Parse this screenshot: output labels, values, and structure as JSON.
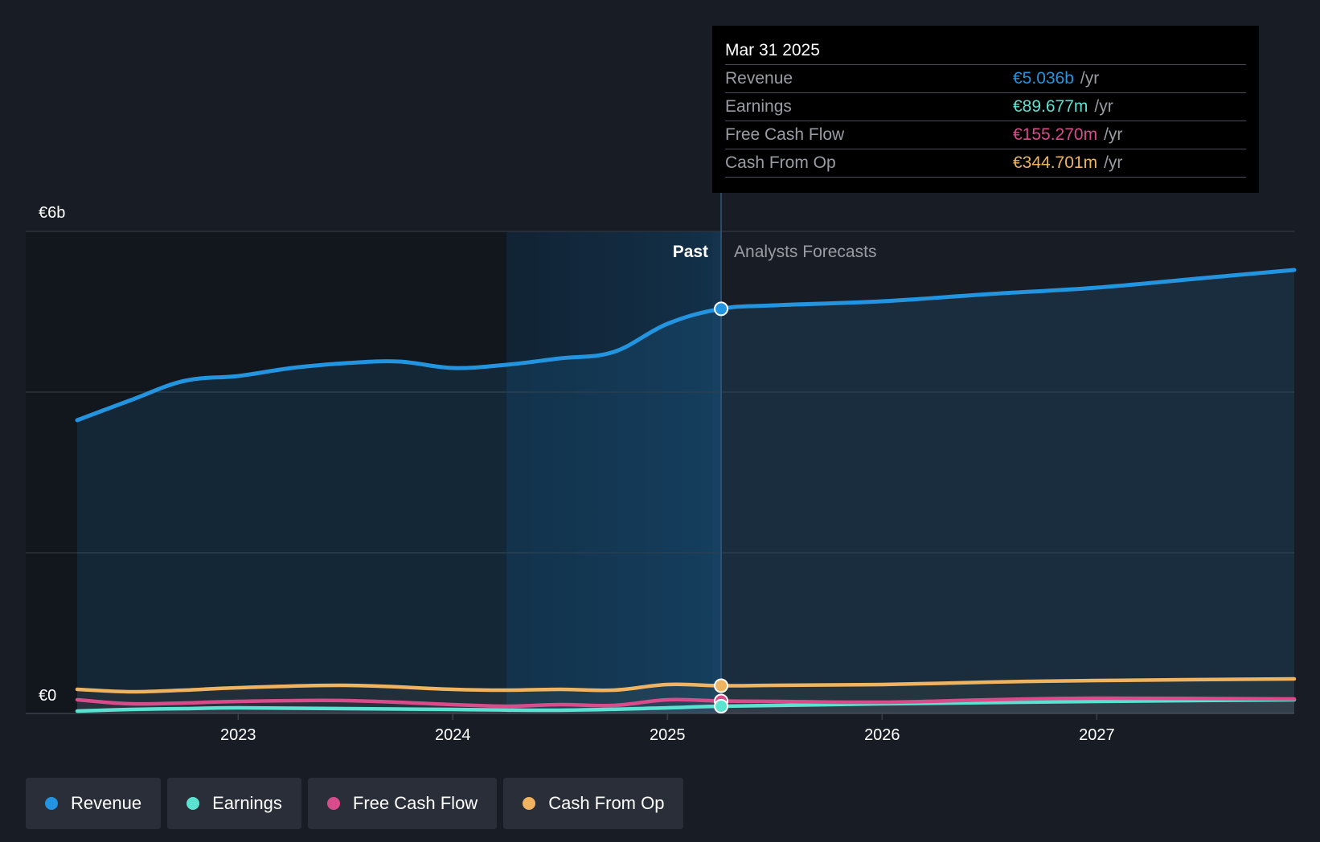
{
  "chart_data": {
    "type": "area",
    "currency": "€",
    "y_axis": {
      "min": 0,
      "max": 6,
      "unit": "b",
      "labels": [
        "€6b",
        "€0"
      ],
      "gridlines": [
        0,
        2,
        4,
        6
      ]
    },
    "x_axis": {
      "min": 2022.25,
      "max": 2027.92,
      "ticks": [
        {
          "value": 2023,
          "label": "2023"
        },
        {
          "value": 2024,
          "label": "2024"
        },
        {
          "value": 2025,
          "label": "2025"
        },
        {
          "value": 2026,
          "label": "2026"
        },
        {
          "value": 2027,
          "label": "2027"
        }
      ]
    },
    "past_label": "Past",
    "forecast_label": "Analysts Forecasts",
    "divider_x": 2025.25,
    "highlight_start_x": 2024.25,
    "series": [
      {
        "name": "Revenue",
        "color": "#2394df",
        "fill": true,
        "points": [
          [
            2022.25,
            3.65
          ],
          [
            2022.5,
            3.9
          ],
          [
            2022.75,
            4.14
          ],
          [
            2023.0,
            4.2
          ],
          [
            2023.25,
            4.3
          ],
          [
            2023.5,
            4.36
          ],
          [
            2023.75,
            4.38
          ],
          [
            2024.0,
            4.3
          ],
          [
            2024.25,
            4.34
          ],
          [
            2024.5,
            4.42
          ],
          [
            2024.75,
            4.5
          ],
          [
            2025.0,
            4.85
          ],
          [
            2025.25,
            5.036
          ],
          [
            2025.5,
            5.08
          ],
          [
            2026.0,
            5.13
          ],
          [
            2026.5,
            5.22
          ],
          [
            2027.0,
            5.3
          ],
          [
            2027.5,
            5.42
          ],
          [
            2027.92,
            5.52
          ]
        ]
      },
      {
        "name": "Earnings",
        "color": "#5ce2d1",
        "fill": false,
        "points": [
          [
            2022.25,
            0.03
          ],
          [
            2022.5,
            0.05
          ],
          [
            2022.75,
            0.06
          ],
          [
            2023.0,
            0.07
          ],
          [
            2023.5,
            0.06
          ],
          [
            2024.0,
            0.05
          ],
          [
            2024.5,
            0.04
          ],
          [
            2025.0,
            0.07
          ],
          [
            2025.25,
            0.09
          ],
          [
            2026.0,
            0.12
          ],
          [
            2027.0,
            0.15
          ],
          [
            2027.92,
            0.17
          ]
        ]
      },
      {
        "name": "Free Cash Flow",
        "color": "#d94c8b",
        "fill": false,
        "points": [
          [
            2022.25,
            0.17
          ],
          [
            2022.5,
            0.12
          ],
          [
            2022.75,
            0.13
          ],
          [
            2023.0,
            0.15
          ],
          [
            2023.5,
            0.16
          ],
          [
            2024.0,
            0.11
          ],
          [
            2024.25,
            0.09
          ],
          [
            2024.5,
            0.11
          ],
          [
            2024.75,
            0.1
          ],
          [
            2025.0,
            0.17
          ],
          [
            2025.25,
            0.155
          ],
          [
            2025.5,
            0.15
          ],
          [
            2026.0,
            0.14
          ],
          [
            2026.5,
            0.17
          ],
          [
            2027.0,
            0.19
          ],
          [
            2027.92,
            0.18
          ]
        ]
      },
      {
        "name": "Cash From Op",
        "color": "#f0b460",
        "fill": false,
        "points": [
          [
            2022.25,
            0.3
          ],
          [
            2022.5,
            0.27
          ],
          [
            2022.75,
            0.29
          ],
          [
            2023.0,
            0.32
          ],
          [
            2023.5,
            0.35
          ],
          [
            2024.0,
            0.3
          ],
          [
            2024.25,
            0.29
          ],
          [
            2024.5,
            0.3
          ],
          [
            2024.75,
            0.29
          ],
          [
            2025.0,
            0.36
          ],
          [
            2025.25,
            0.345
          ],
          [
            2025.5,
            0.35
          ],
          [
            2026.0,
            0.36
          ],
          [
            2026.5,
            0.39
          ],
          [
            2027.0,
            0.41
          ],
          [
            2027.92,
            0.43
          ]
        ]
      }
    ],
    "highlight_points": [
      {
        "series": "Revenue",
        "x": 2025.25,
        "y": 5.036
      },
      {
        "series": "Cash From Op",
        "x": 2025.25,
        "y": 0.345
      },
      {
        "series": "Free Cash Flow",
        "x": 2025.25,
        "y": 0.155
      },
      {
        "series": "Earnings",
        "x": 2025.25,
        "y": 0.09
      }
    ]
  },
  "tooltip": {
    "date": "Mar 31 2025",
    "rows": [
      {
        "label": "Revenue",
        "value": "€5.036b",
        "unit": "/yr",
        "color": "#2394df"
      },
      {
        "label": "Earnings",
        "value": "€89.677m",
        "unit": "/yr",
        "color": "#5ce2d1"
      },
      {
        "label": "Free Cash Flow",
        "value": "€155.270m",
        "unit": "/yr",
        "color": "#d94c8b"
      },
      {
        "label": "Cash From Op",
        "value": "€344.701m",
        "unit": "/yr",
        "color": "#f0b460"
      }
    ]
  },
  "legend": [
    {
      "label": "Revenue",
      "color": "#2394df"
    },
    {
      "label": "Earnings",
      "color": "#5ce2d1"
    },
    {
      "label": "Free Cash Flow",
      "color": "#d94c8b"
    },
    {
      "label": "Cash From Op",
      "color": "#f0b460"
    }
  ]
}
